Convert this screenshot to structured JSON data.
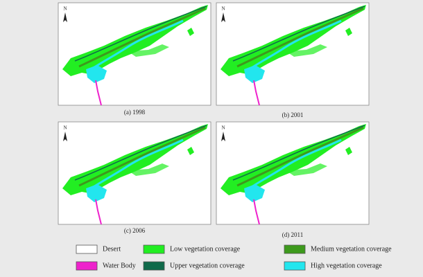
{
  "panels": [
    {
      "caption": "(a) 1998",
      "north": "N"
    },
    {
      "caption": "(b) 2001",
      "north": "N"
    },
    {
      "caption": "(c) 2006",
      "north": "N"
    },
    {
      "caption": "(d) 2011",
      "north": "N"
    }
  ],
  "legend": [
    {
      "label": "Desert",
      "color": "#ffffff"
    },
    {
      "label": "Low vegetation coverage",
      "color": "#22ee22"
    },
    {
      "label": "Medium vegetation coverage",
      "color": "#3d9a1c"
    },
    {
      "label": "Water Body",
      "color": "#ee22cc"
    },
    {
      "label": "Upper vegetation coverage",
      "color": "#0f6a4a"
    },
    {
      "label": "High vegetation coverage",
      "color": "#22e6ee"
    }
  ]
}
